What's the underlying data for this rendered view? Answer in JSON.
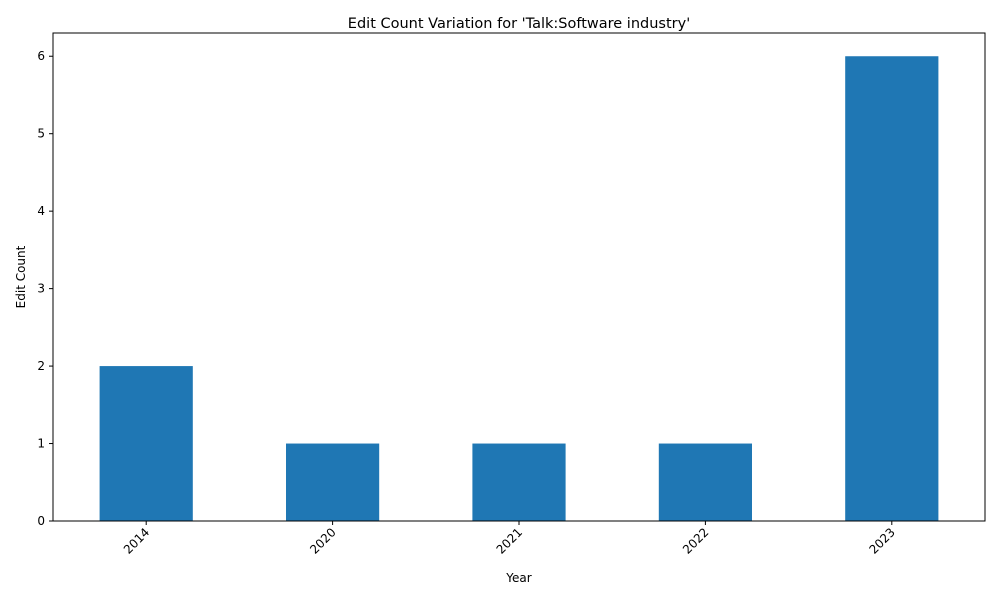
{
  "chart_data": {
    "type": "bar",
    "title": "Edit Count Variation for 'Talk:Software industry'",
    "xlabel": "Year",
    "ylabel": "Edit Count",
    "categories": [
      "2014",
      "2020",
      "2021",
      "2022",
      "2023"
    ],
    "values": [
      2,
      1,
      1,
      1,
      6
    ],
    "ylim": [
      0,
      6.3
    ],
    "yticks": [
      0,
      1,
      2,
      3,
      4,
      5,
      6
    ],
    "grid": false,
    "legend": "none",
    "bar_color": "#1f77b4",
    "x_tick_rotation_deg": 45
  }
}
